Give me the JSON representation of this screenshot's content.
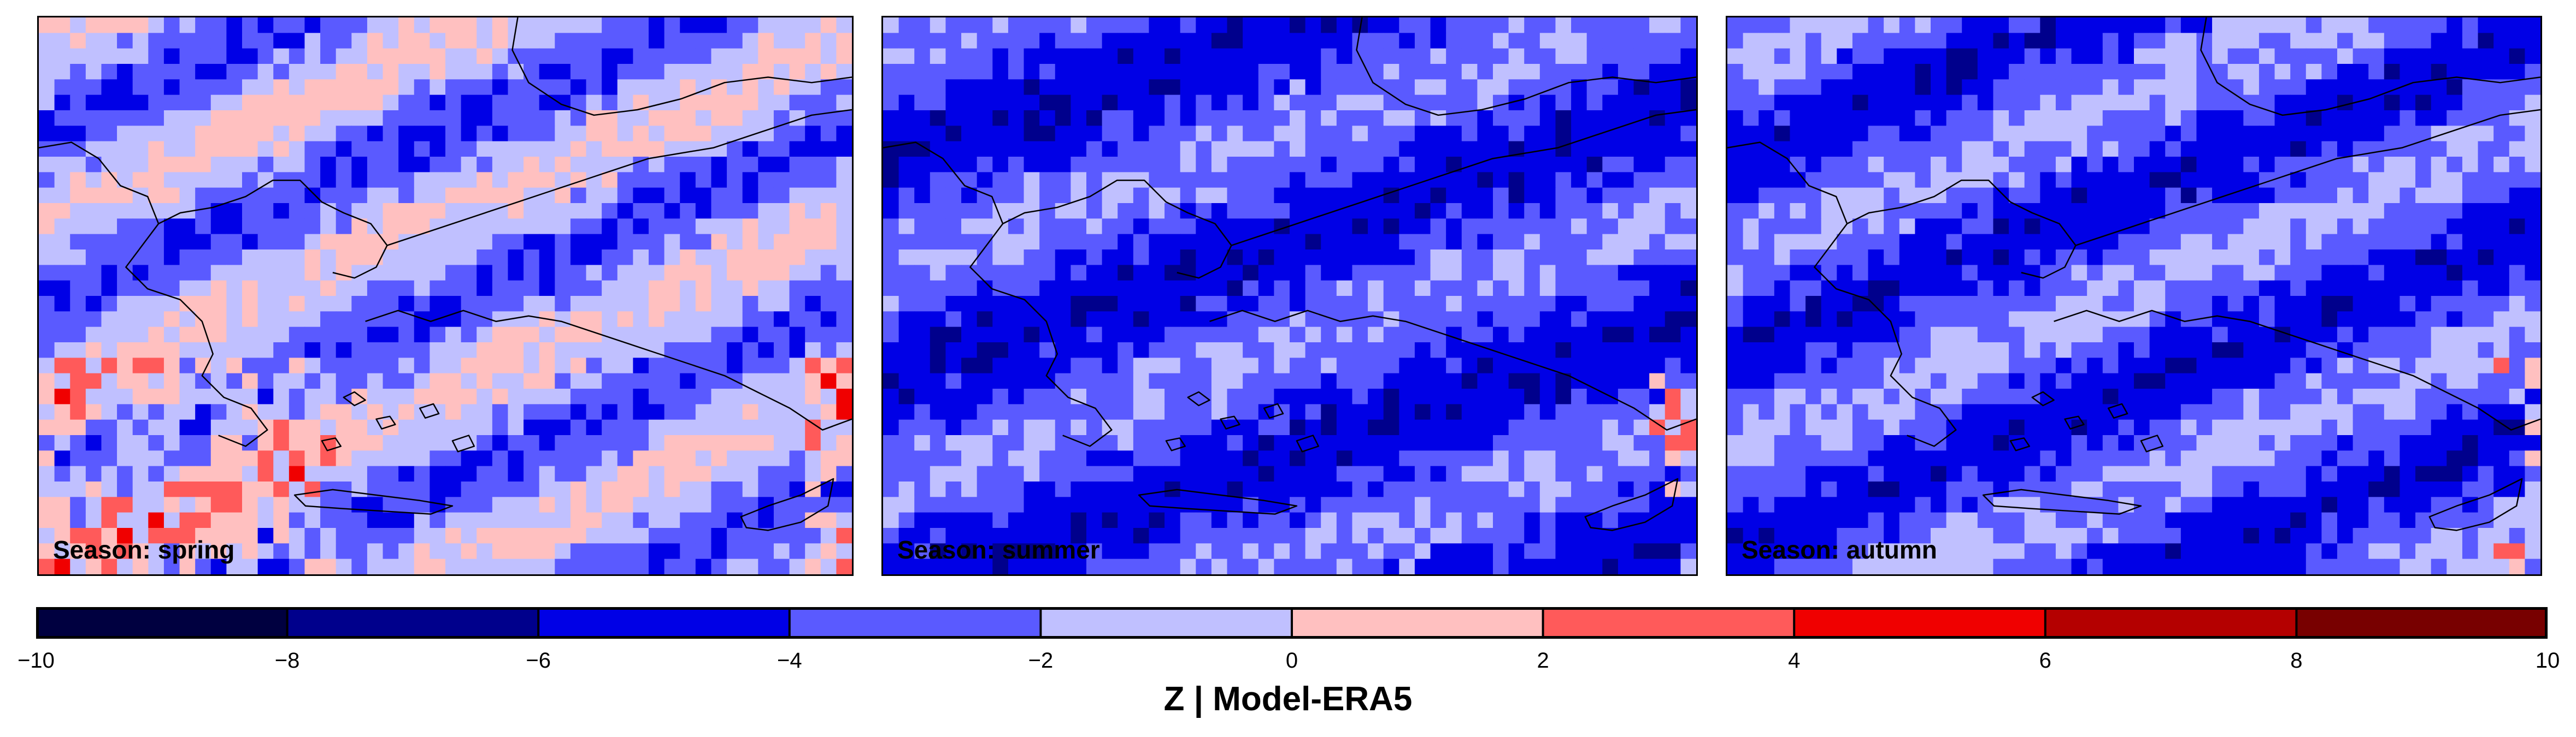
{
  "panels": [
    {
      "id": "spring",
      "label": "Season: spring",
      "dominant_bin": "-4 to -2"
    },
    {
      "id": "summer",
      "label": "Season: summer",
      "dominant_bin": "-6 to -4"
    },
    {
      "id": "autumn",
      "label": "Season: autumn",
      "dominant_bin": "-6 to -4"
    }
  ],
  "colorbar": {
    "title": "Z | Model-ERA5",
    "range": [
      -10,
      10
    ],
    "boundaries": [
      "−10",
      "−8",
      "−6",
      "−4",
      "−2",
      "0",
      "2",
      "4",
      "6",
      "8",
      "10"
    ],
    "colors": [
      "#000040",
      "#00008c",
      "#0000e6",
      "#5a5aff",
      "#c0c0ff",
      "#ffc0c0",
      "#ff5a5a",
      "#f00000",
      "#b40000",
      "#780000"
    ]
  },
  "map_region": "Greece / Aegean / Turkey / Cyprus"
}
